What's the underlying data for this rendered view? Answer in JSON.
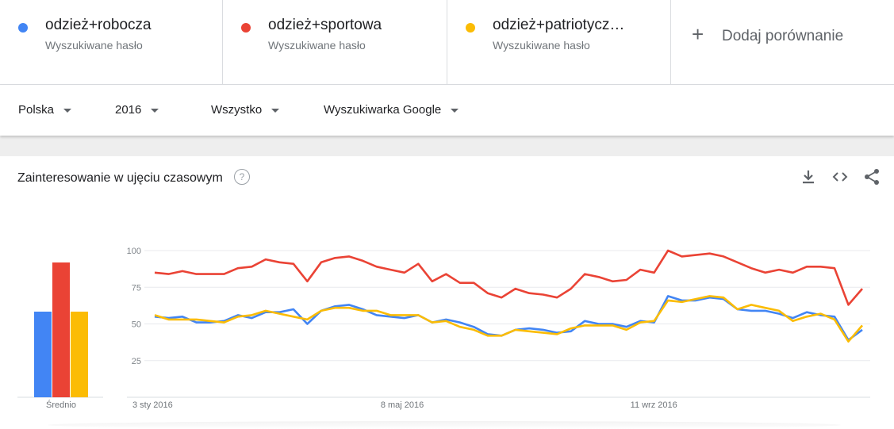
{
  "compare": {
    "terms": [
      {
        "name": "odzież+robocza",
        "subtitle": "Wyszukiwane hasło",
        "color": "#4285f4"
      },
      {
        "name": "odzież+sportowa",
        "subtitle": "Wyszukiwane hasło",
        "color": "#ea4335"
      },
      {
        "name": "odzież+patriotycz…",
        "subtitle": "Wyszukiwane hasło",
        "color": "#fbbc04"
      }
    ],
    "add_label": "Dodaj porównanie"
  },
  "filters": {
    "region": "Polska",
    "period": "2016",
    "category": "Wszystko",
    "source": "Wyszukiwarka Google"
  },
  "card": {
    "title": "Zainteresowanie w ujęciu czasowym",
    "help_glyph": "?",
    "icons": [
      "download-icon",
      "embed-icon",
      "share-icon"
    ]
  },
  "chart_data": [
    {
      "type": "bar",
      "categories": [
        "odzież+robocza",
        "odzież+sportowa",
        "odzież+patriotycz…"
      ],
      "values": [
        54,
        85,
        54
      ],
      "xlabel": "Średnio",
      "ylim": [
        0,
        100
      ],
      "colors": [
        "#4285f4",
        "#ea4335",
        "#fbbc04"
      ]
    },
    {
      "type": "line",
      "ylim": [
        0,
        100
      ],
      "yticks": [
        25,
        50,
        75,
        100
      ],
      "grid": true,
      "x_tick_labels": [
        {
          "label": "3 sty 2016",
          "index": 0
        },
        {
          "label": "8 maj 2016",
          "index": 18
        },
        {
          "label": "11 wrz 2016",
          "index": 36
        }
      ],
      "series": [
        {
          "name": "odzież+robocza",
          "color": "#4285f4",
          "values": [
            55,
            54,
            55,
            51,
            51,
            52,
            56,
            54,
            58,
            58,
            60,
            50,
            59,
            62,
            63,
            60,
            56,
            55,
            54,
            56,
            51,
            53,
            51,
            48,
            43,
            42,
            46,
            47,
            46,
            44,
            45,
            52,
            50,
            50,
            48,
            52,
            51,
            69,
            66,
            66,
            68,
            67,
            60,
            59,
            59,
            57,
            54,
            58,
            56,
            55,
            39,
            46
          ]
        },
        {
          "name": "odzież+sportowa",
          "color": "#ea4335",
          "values": [
            85,
            84,
            86,
            84,
            84,
            84,
            88,
            89,
            94,
            92,
            91,
            79,
            92,
            95,
            96,
            93,
            89,
            87,
            85,
            91,
            79,
            84,
            78,
            78,
            71,
            68,
            74,
            71,
            70,
            68,
            74,
            84,
            82,
            79,
            80,
            87,
            85,
            100,
            96,
            97,
            98,
            96,
            92,
            88,
            85,
            87,
            85,
            89,
            89,
            88,
            63,
            74
          ]
        },
        {
          "name": "odzież+patriotycz…",
          "color": "#fbbc04",
          "values": [
            56,
            53,
            53,
            53,
            52,
            51,
            55,
            56,
            59,
            57,
            55,
            53,
            59,
            61,
            61,
            59,
            59,
            56,
            56,
            56,
            51,
            52,
            48,
            46,
            42,
            42,
            46,
            45,
            44,
            43,
            47,
            49,
            49,
            49,
            46,
            51,
            52,
            66,
            65,
            67,
            69,
            68,
            60,
            63,
            61,
            59,
            52,
            55,
            57,
            53,
            38,
            49
          ]
        }
      ]
    }
  ]
}
